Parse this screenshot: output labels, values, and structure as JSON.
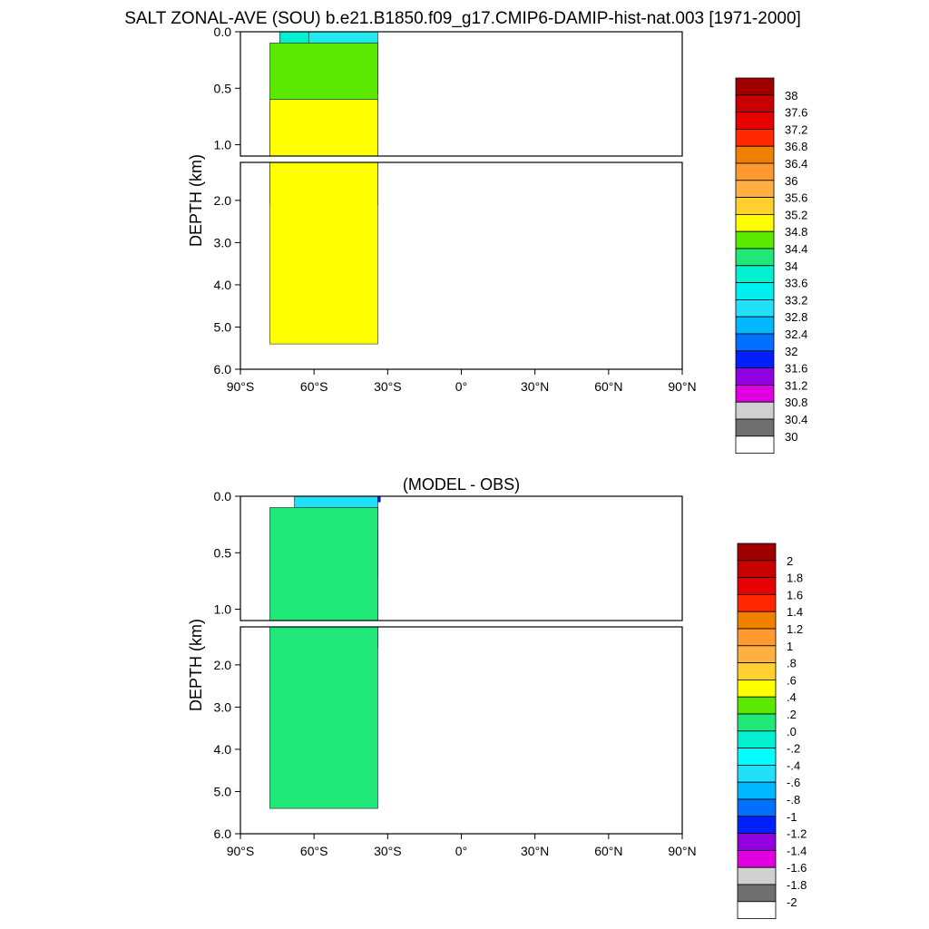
{
  "title": "SALT ZONAL-AVE (SOU) b.e21.B1850.f09_g17.CMIP6-DAMIP-hist-nat.003 [1971-2000]",
  "chart_data": [
    {
      "type": "heatmap",
      "panel": "top",
      "title": "",
      "xlabel": "",
      "ylabel": "DEPTH (km)",
      "x_ticks": [
        "90°S",
        "60°S",
        "30°S",
        "0°",
        "30°N",
        "60°N",
        "90°N"
      ],
      "y_ticks_upper": [
        "0.0",
        "0.5",
        "1.0"
      ],
      "y_ticks_lower": [
        "2.0",
        "3.0",
        "4.0",
        "5.0",
        "6.0"
      ],
      "xlim": [
        -90,
        90
      ],
      "ylim_km": [
        0,
        6
      ],
      "upper_panel_depth_km": [
        0,
        1.1
      ],
      "lower_panel_depth_km": [
        1.1,
        6
      ],
      "data_lat_range": [
        -78,
        -34
      ],
      "regions": [
        {
          "label": "33.6-34.0",
          "lat": [
            -74,
            -40
          ],
          "depth_km": [
            0.0,
            0.2
          ],
          "color": "#00f0d0"
        },
        {
          "label": "33.2-33.6",
          "lat": [
            -62,
            -34
          ],
          "depth_km": [
            0.0,
            0.55
          ],
          "color": "#22e8f0"
        },
        {
          "label": "34.0-34.4",
          "lat": [
            -78,
            -34
          ],
          "depth_km": [
            0.1,
            2.1
          ],
          "color": "#5ae800"
        },
        {
          "label": "34.4-34.8",
          "lat": [
            -78,
            -34
          ],
          "depth_km": [
            0.6,
            5.4
          ],
          "color": "#ffff00"
        }
      ],
      "colorbar": {
        "labels": [
          "38",
          "37.6",
          "37.2",
          "36.8",
          "36.4",
          "36",
          "35.6",
          "35.2",
          "34.8",
          "34.4",
          "34",
          "33.6",
          "33.2",
          "32.8",
          "32.4",
          "32",
          "31.6",
          "31.2",
          "30.8",
          "30.4",
          "30"
        ],
        "colors": [
          "#a00000",
          "#c80000",
          "#e60000",
          "#ff2800",
          "#f08000",
          "#ff9a30",
          "#ffb040",
          "#ffd030",
          "#ffff00",
          "#5ae800",
          "#20e878",
          "#00f0d0",
          "#00f0f0",
          "#22e0f8",
          "#00b8ff",
          "#0070ff",
          "#0020ff",
          "#9000e0",
          "#e000e0",
          "#d0d0d0",
          "#707070",
          "#ffffff"
        ]
      }
    },
    {
      "type": "heatmap",
      "panel": "bottom",
      "title": "(MODEL - OBS)",
      "xlabel": "",
      "ylabel": "DEPTH (km)",
      "x_ticks": [
        "90°S",
        "60°S",
        "30°S",
        "0°",
        "30°N",
        "60°N",
        "90°N"
      ],
      "y_ticks_upper": [
        "0.0",
        "0.5",
        "1.0"
      ],
      "y_ticks_lower": [
        "2.0",
        "3.0",
        "4.0",
        "5.0",
        "6.0"
      ],
      "xlim": [
        -90,
        90
      ],
      "ylim_km": [
        0,
        6
      ],
      "upper_panel_depth_km": [
        0,
        1.1
      ],
      "lower_panel_depth_km": [
        1.1,
        6
      ],
      "data_lat_range": [
        -78,
        -34
      ],
      "regions": [
        {
          "label": "-0.6 to -0.4",
          "lat": [
            -68,
            -34
          ],
          "depth_km": [
            0.0,
            0.7
          ],
          "color": "#22e0f8"
        },
        {
          "label": "-0.4 to -0.2",
          "lat": [
            -60,
            -34
          ],
          "depth_km": [
            0.3,
            1.6
          ],
          "color": "#00ffff"
        },
        {
          "label": "0.0-0.2",
          "lat": [
            -78,
            -34
          ],
          "depth_km": [
            0.1,
            5.4
          ],
          "color": "#20e878"
        },
        {
          "label": "-1.0 to -0.8",
          "lat": [
            -34,
            -33
          ],
          "depth_km": [
            0.0,
            0.05
          ],
          "color": "#0020ff"
        }
      ],
      "colorbar": {
        "labels": [
          "2",
          "1.8",
          "1.6",
          "1.4",
          "1.2",
          "1",
          ".8",
          ".6",
          ".4",
          ".2",
          ".0",
          "-.2",
          "-.4",
          "-.6",
          "-.8",
          "-1",
          "-1.2",
          "-1.4",
          "-1.6",
          "-1.8",
          "-2"
        ],
        "colors": [
          "#a00000",
          "#c80000",
          "#e60000",
          "#ff2800",
          "#f08000",
          "#ff9a30",
          "#ffb040",
          "#ffd030",
          "#ffff00",
          "#5ae800",
          "#20e878",
          "#00f0d0",
          "#00ffff",
          "#22e0f8",
          "#00b8ff",
          "#0070ff",
          "#0020ff",
          "#9000e0",
          "#e000e0",
          "#d0d0d0",
          "#707070",
          "#ffffff"
        ]
      }
    }
  ]
}
